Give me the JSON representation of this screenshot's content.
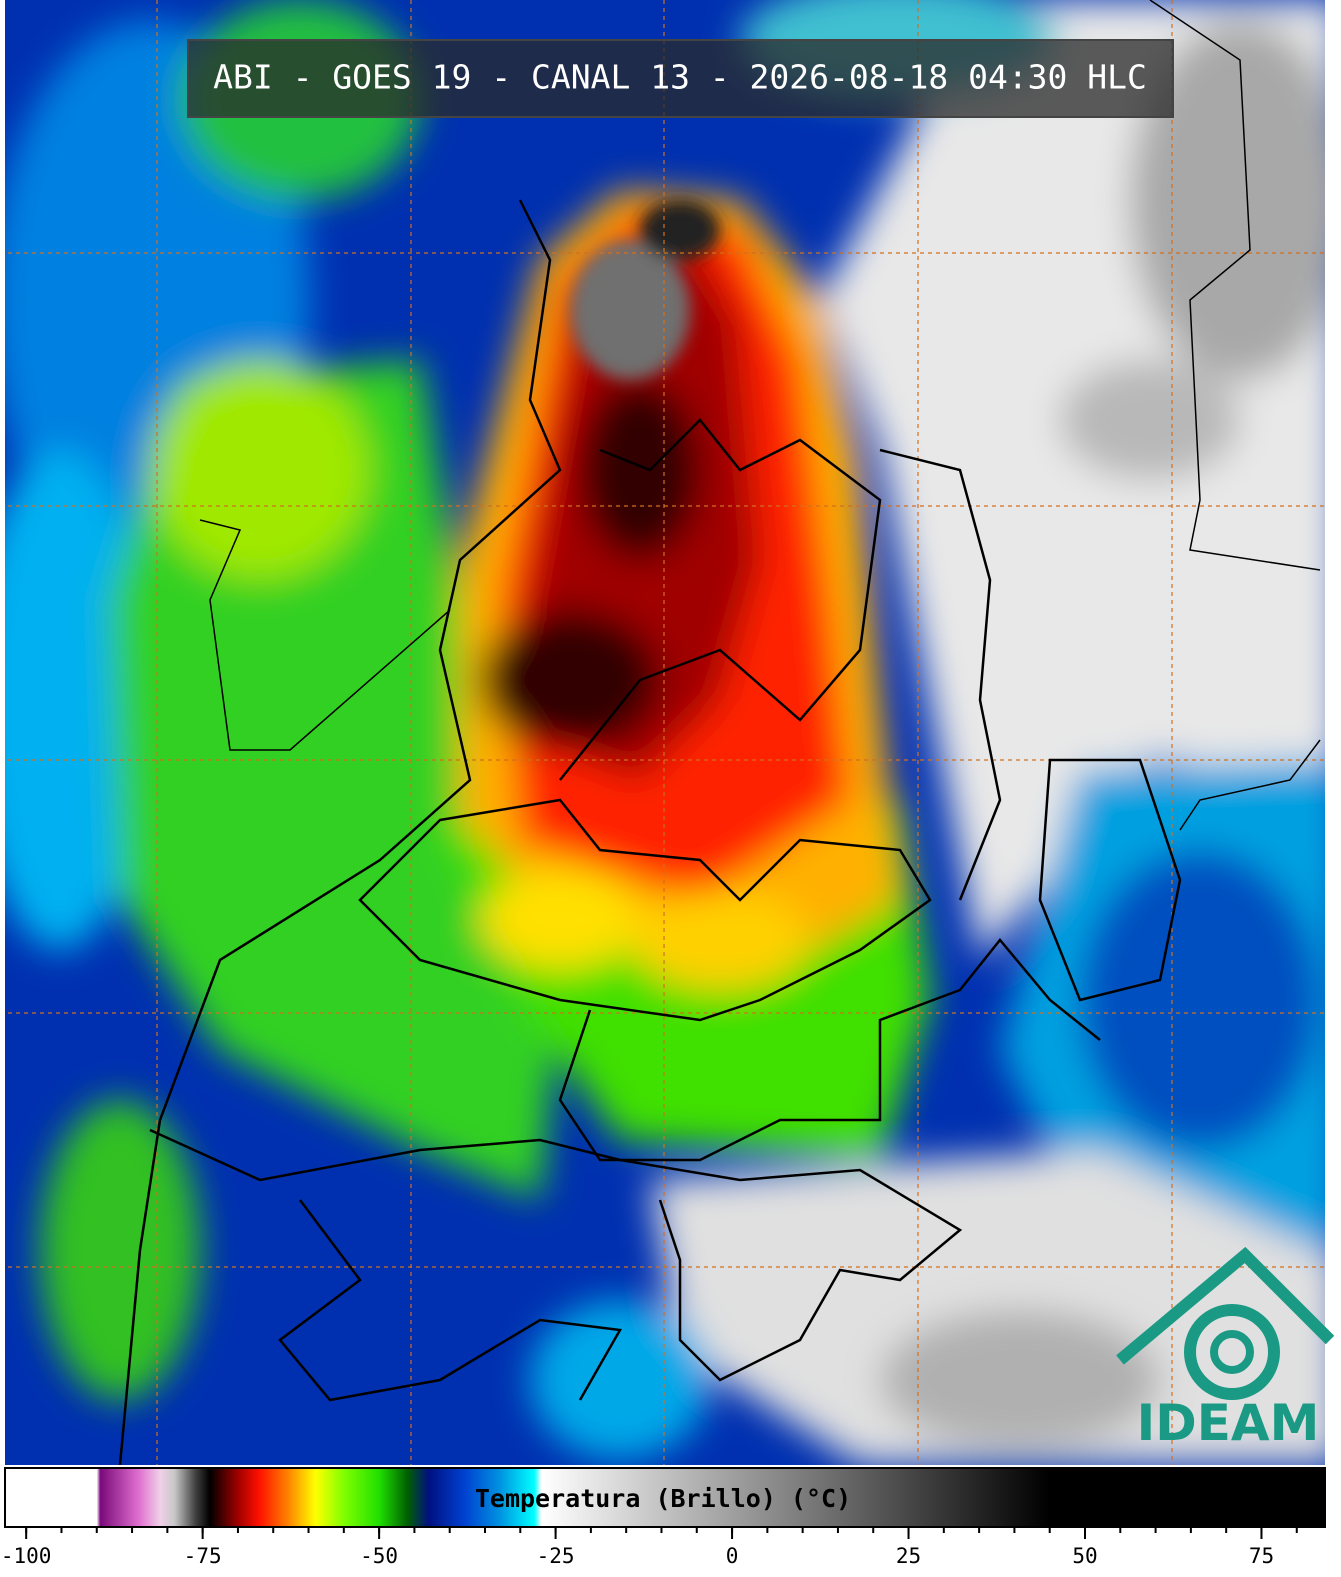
{
  "header": {
    "title": "ABI - GOES 19 - CANAL 13 - 2026-08-18 04:30 HLC"
  },
  "logo": {
    "text": "IDEAM"
  },
  "colorbar": {
    "label": "Temperatura (Brillo) (°C)",
    "xlim": [
      -103,
      84
    ],
    "ticks": [
      -100,
      -75,
      -50,
      -25,
      0,
      25,
      50,
      75
    ],
    "minor_tick_step": 5,
    "colorscale": [
      {
        "value": -103,
        "color": "#ffffff"
      },
      {
        "value": -90,
        "color": "#ffffff"
      },
      {
        "value": -89.5,
        "color": "#7a0a7a"
      },
      {
        "value": -84,
        "color": "#e070d0"
      },
      {
        "value": -81,
        "color": "#f0d0e8"
      },
      {
        "value": -79,
        "color": "#c8c8c8"
      },
      {
        "value": -76,
        "color": "#404040"
      },
      {
        "value": -74,
        "color": "#000000"
      },
      {
        "value": -70,
        "color": "#a00000"
      },
      {
        "value": -67,
        "color": "#ff1000"
      },
      {
        "value": -63,
        "color": "#ff8000"
      },
      {
        "value": -59,
        "color": "#ffff00"
      },
      {
        "value": -55,
        "color": "#80ff00"
      },
      {
        "value": -50,
        "color": "#20e000"
      },
      {
        "value": -46,
        "color": "#006000"
      },
      {
        "value": -43,
        "color": "#001080"
      },
      {
        "value": -38,
        "color": "#0040d0"
      },
      {
        "value": -33,
        "color": "#0090e0"
      },
      {
        "value": -28,
        "color": "#00ffff"
      },
      {
        "value": -27,
        "color": "#ffffff"
      },
      {
        "value": 45,
        "color": "#000000"
      },
      {
        "value": 84,
        "color": "#000000"
      }
    ]
  }
}
